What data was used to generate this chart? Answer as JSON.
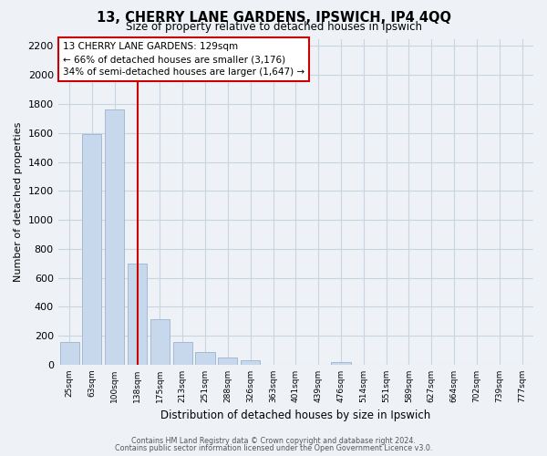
{
  "title": "13, CHERRY LANE GARDENS, IPSWICH, IP4 4QQ",
  "subtitle": "Size of property relative to detached houses in Ipswich",
  "xlabel": "Distribution of detached houses by size in Ipswich",
  "ylabel": "Number of detached properties",
  "bar_labels": [
    "25sqm",
    "63sqm",
    "100sqm",
    "138sqm",
    "175sqm",
    "213sqm",
    "251sqm",
    "288sqm",
    "326sqm",
    "363sqm",
    "401sqm",
    "439sqm",
    "476sqm",
    "514sqm",
    "551sqm",
    "589sqm",
    "627sqm",
    "664sqm",
    "702sqm",
    "739sqm",
    "777sqm"
  ],
  "bar_values": [
    160,
    1590,
    1760,
    700,
    315,
    155,
    85,
    50,
    30,
    0,
    0,
    0,
    20,
    0,
    0,
    0,
    0,
    0,
    0,
    0,
    0
  ],
  "bar_color": "#c8d8ec",
  "bar_edge_color": "#9ab4d0",
  "vline_index": 3,
  "vline_color": "#cc0000",
  "ylim": [
    0,
    2250
  ],
  "yticks": [
    0,
    200,
    400,
    600,
    800,
    1000,
    1200,
    1400,
    1600,
    1800,
    2000,
    2200
  ],
  "annotation_line1": "13 CHERRY LANE GARDENS: 129sqm",
  "annotation_line2": "← 66% of detached houses are smaller (3,176)",
  "annotation_line3": "34% of semi-detached houses are larger (1,647) →",
  "footer_line1": "Contains HM Land Registry data © Crown copyright and database right 2024.",
  "footer_line2": "Contains public sector information licensed under the Open Government Licence v3.0.",
  "grid_color": "#c8d4e0",
  "background_color": "#eef2f7"
}
